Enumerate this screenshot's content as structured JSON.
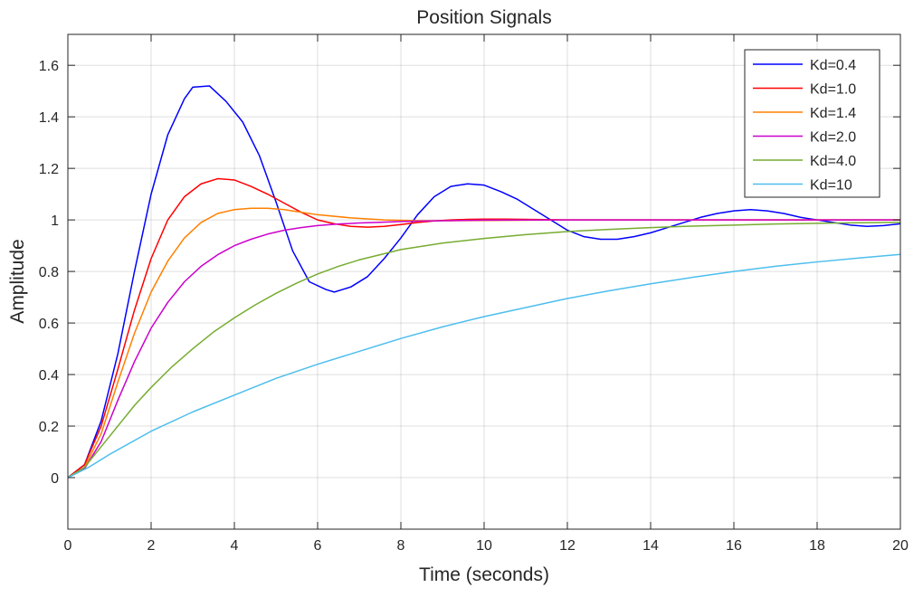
{
  "chart_data": {
    "type": "line",
    "title": "Position Signals",
    "xlabel": "Time (seconds)",
    "ylabel": "Amplitude",
    "xlim": [
      0,
      20
    ],
    "ylim": [
      -0.2,
      1.72
    ],
    "xticks": [
      0,
      2,
      4,
      6,
      8,
      10,
      12,
      14,
      16,
      18,
      20
    ],
    "yticks": [
      0,
      0.2,
      0.4,
      0.6,
      0.8,
      1,
      1.2,
      1.4,
      1.6
    ],
    "ytick_labels": [
      "0",
      "0.2",
      "0.4",
      "0.6",
      "0.8",
      "1",
      "1.2",
      "1.4",
      "1.6"
    ],
    "grid": true,
    "legend_position": "top-right",
    "series": [
      {
        "name": "Kd=0.4",
        "color": "#0000ff",
        "x": [
          0,
          0.4,
          0.8,
          1.2,
          1.6,
          2.0,
          2.4,
          2.8,
          3.0,
          3.4,
          3.8,
          4.2,
          4.6,
          5.0,
          5.4,
          5.8,
          6.2,
          6.4,
          6.8,
          7.2,
          7.6,
          8.0,
          8.4,
          8.8,
          9.2,
          9.6,
          10.0,
          10.4,
          10.8,
          11.2,
          11.6,
          12.0,
          12.4,
          12.8,
          13.2,
          13.6,
          14.0,
          14.4,
          14.8,
          15.2,
          15.6,
          16.0,
          16.4,
          16.8,
          17.2,
          17.6,
          18.0,
          18.4,
          18.8,
          19.2,
          19.6,
          20.0
        ],
        "y": [
          0,
          0.05,
          0.22,
          0.48,
          0.8,
          1.1,
          1.33,
          1.47,
          1.515,
          1.52,
          1.46,
          1.38,
          1.25,
          1.07,
          0.88,
          0.76,
          0.73,
          0.72,
          0.74,
          0.78,
          0.85,
          0.93,
          1.02,
          1.09,
          1.13,
          1.14,
          1.135,
          1.11,
          1.08,
          1.04,
          1.0,
          0.96,
          0.935,
          0.925,
          0.925,
          0.935,
          0.95,
          0.97,
          0.99,
          1.01,
          1.025,
          1.035,
          1.04,
          1.035,
          1.025,
          1.01,
          1.0,
          0.99,
          0.98,
          0.975,
          0.978,
          0.985
        ]
      },
      {
        "name": "Kd=1.0",
        "color": "#ff0000",
        "x": [
          0,
          0.4,
          0.8,
          1.2,
          1.6,
          2.0,
          2.4,
          2.8,
          3.2,
          3.6,
          4.0,
          4.4,
          4.8,
          5.2,
          5.6,
          6.0,
          6.4,
          6.8,
          7.2,
          7.6,
          8.0,
          8.4,
          8.8,
          9.2,
          9.6,
          10.0,
          10.5,
          11.0,
          12.0,
          13.0,
          14.0,
          16.0,
          18.0,
          20.0
        ],
        "y": [
          0,
          0.05,
          0.2,
          0.42,
          0.65,
          0.85,
          1.0,
          1.09,
          1.14,
          1.16,
          1.155,
          1.13,
          1.1,
          1.065,
          1.03,
          1.0,
          0.985,
          0.975,
          0.972,
          0.975,
          0.982,
          0.99,
          0.996,
          1.0,
          1.002,
          1.003,
          1.003,
          1.002,
          1.0,
          1.0,
          1.0,
          1.0,
          1.0,
          1.0
        ]
      },
      {
        "name": "Kd=1.4",
        "color": "#ff8000",
        "x": [
          0,
          0.4,
          0.8,
          1.2,
          1.6,
          2.0,
          2.4,
          2.8,
          3.2,
          3.6,
          4.0,
          4.4,
          4.8,
          5.2,
          5.6,
          6.0,
          6.8,
          7.6,
          8.4,
          9.2,
          10.0,
          12.0,
          14.0,
          16.0,
          18.0,
          20.0
        ],
        "y": [
          0,
          0.04,
          0.17,
          0.37,
          0.56,
          0.72,
          0.84,
          0.93,
          0.99,
          1.025,
          1.04,
          1.045,
          1.045,
          1.04,
          1.03,
          1.02,
          1.008,
          1.0,
          0.997,
          0.997,
          0.998,
          1.0,
          1.0,
          1.0,
          1.0,
          1.0
        ]
      },
      {
        "name": "Kd=2.0",
        "color": "#cc00cc",
        "x": [
          0,
          0.4,
          0.8,
          1.2,
          1.6,
          2.0,
          2.4,
          2.8,
          3.2,
          3.6,
          4.0,
          4.4,
          4.8,
          5.2,
          5.6,
          6.0,
          6.5,
          7.0,
          7.5,
          8.0,
          9.0,
          10.0,
          12.0,
          14.0,
          16.0,
          18.0,
          20.0
        ],
        "y": [
          0,
          0.035,
          0.14,
          0.3,
          0.45,
          0.58,
          0.68,
          0.76,
          0.82,
          0.865,
          0.9,
          0.925,
          0.945,
          0.96,
          0.97,
          0.978,
          0.984,
          0.988,
          0.991,
          0.994,
          0.997,
          0.999,
          1.0,
          1.0,
          1.0,
          1.0,
          1.0
        ]
      },
      {
        "name": "Kd=4.0",
        "color": "#77ac30",
        "x": [
          0,
          0.4,
          0.8,
          1.2,
          1.6,
          2.0,
          2.5,
          3.0,
          3.5,
          4.0,
          4.5,
          5.0,
          5.5,
          6.0,
          6.5,
          7.0,
          7.5,
          8.0,
          9.0,
          10.0,
          11.0,
          12.0,
          13.0,
          14.0,
          15.0,
          16.0,
          17.0,
          18.0,
          19.0,
          20.0
        ],
        "y": [
          0,
          0.04,
          0.12,
          0.2,
          0.28,
          0.35,
          0.43,
          0.5,
          0.565,
          0.62,
          0.67,
          0.715,
          0.755,
          0.79,
          0.82,
          0.845,
          0.865,
          0.885,
          0.91,
          0.928,
          0.943,
          0.955,
          0.963,
          0.97,
          0.976,
          0.98,
          0.984,
          0.987,
          0.989,
          0.991
        ]
      },
      {
        "name": "Kd=10",
        "color": "#4dbeee",
        "x": [
          0,
          0.5,
          1,
          2,
          3,
          4,
          5,
          6,
          7,
          8,
          9,
          10,
          11,
          12,
          13,
          14,
          15,
          16,
          17,
          18,
          19,
          20
        ],
        "y": [
          0,
          0.04,
          0.09,
          0.18,
          0.255,
          0.32,
          0.385,
          0.44,
          0.49,
          0.54,
          0.585,
          0.625,
          0.66,
          0.695,
          0.725,
          0.752,
          0.777,
          0.8,
          0.82,
          0.837,
          0.852,
          0.866
        ]
      }
    ]
  }
}
